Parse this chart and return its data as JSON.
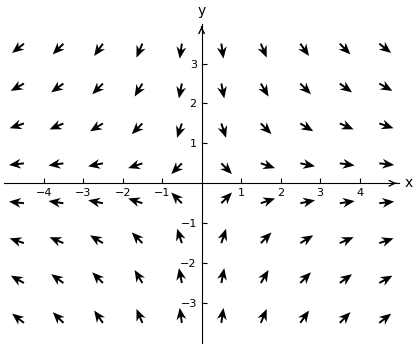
{
  "x_range": [
    -5,
    5
  ],
  "y_range": [
    -4,
    4
  ],
  "x_ticks": [
    -4,
    -3,
    -2,
    -1,
    1,
    2,
    3,
    4
  ],
  "y_ticks": [
    -3,
    -2,
    -1,
    1,
    2,
    3
  ],
  "xlabel": "x",
  "ylabel": "y",
  "arrow_color": "black",
  "background_color": "white",
  "nx": 10,
  "ny": 8
}
